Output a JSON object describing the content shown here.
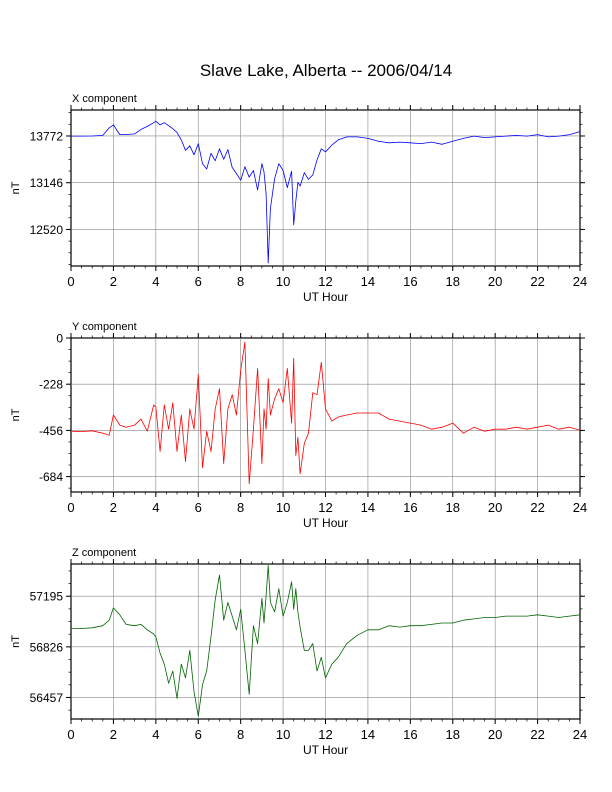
{
  "title": "Slave Lake, Alberta -- 2006/04/14",
  "chart_data": [
    {
      "type": "line",
      "panel_label": "X component",
      "xlabel": "UT Hour",
      "ylabel": "nT",
      "xlim": [
        0,
        24
      ],
      "ylim": [
        12030,
        14120
      ],
      "x_ticks": [
        0,
        2,
        4,
        6,
        8,
        10,
        12,
        14,
        16,
        18,
        20,
        22,
        24
      ],
      "y_ticks": [
        12520,
        13146,
        13772
      ],
      "grid": true,
      "series": [
        {
          "color": "#0000ff",
          "x": [
            0,
            0.5,
            1,
            1.5,
            1.8,
            2,
            2.3,
            2.6,
            3,
            3.3,
            3.6,
            3.9,
            4,
            4.2,
            4.4,
            4.6,
            4.8,
            5,
            5.2,
            5.4,
            5.6,
            5.8,
            6,
            6.2,
            6.4,
            6.6,
            6.8,
            7,
            7.2,
            7.4,
            7.6,
            7.8,
            8,
            8.2,
            8.4,
            8.6,
            8.8,
            9,
            9.1,
            9.2,
            9.3,
            9.4,
            9.6,
            9.8,
            10,
            10.2,
            10.4,
            10.5,
            10.6,
            10.7,
            10.8,
            11,
            11.2,
            11.4,
            11.6,
            11.8,
            12,
            12.3,
            12.6,
            13,
            13.5,
            14,
            14.5,
            15,
            15.5,
            16,
            16.5,
            17,
            17.5,
            18,
            18.5,
            19,
            19.5,
            20,
            20.5,
            21,
            21.5,
            22,
            22.5,
            23,
            23.5,
            24
          ],
          "values": [
            13770,
            13770,
            13772,
            13780,
            13880,
            13920,
            13790,
            13790,
            13800,
            13860,
            13900,
            13950,
            13970,
            13920,
            13950,
            13910,
            13870,
            13820,
            13720,
            13580,
            13640,
            13520,
            13670,
            13400,
            13330,
            13540,
            13440,
            13600,
            13460,
            13590,
            13350,
            13270,
            13180,
            13360,
            13220,
            13310,
            13050,
            13400,
            13290,
            13000,
            12070,
            12800,
            13200,
            13400,
            13310,
            13080,
            13300,
            12580,
            12900,
            13150,
            13100,
            13280,
            13190,
            13250,
            13450,
            13600,
            13560,
            13650,
            13720,
            13760,
            13760,
            13740,
            13700,
            13680,
            13690,
            13680,
            13670,
            13690,
            13660,
            13700,
            13740,
            13770,
            13750,
            13760,
            13770,
            13780,
            13770,
            13790,
            13760,
            13770,
            13790,
            13830
          ]
        }
      ]
    },
    {
      "type": "line",
      "panel_label": "Y component",
      "xlabel": "UT Hour",
      "ylabel": "nT",
      "xlim": [
        0,
        24
      ],
      "ylim": [
        -760,
        0
      ],
      "x_ticks": [
        0,
        2,
        4,
        6,
        8,
        10,
        12,
        14,
        16,
        18,
        20,
        22,
        24
      ],
      "y_ticks": [
        0,
        -228,
        -456,
        -684
      ],
      "grid": true,
      "series": [
        {
          "color": "#ff0000",
          "x": [
            0,
            0.5,
            1,
            1.5,
            1.8,
            2,
            2.3,
            2.6,
            3,
            3.3,
            3.6,
            3.9,
            4,
            4.2,
            4.4,
            4.6,
            4.8,
            5,
            5.2,
            5.4,
            5.6,
            5.8,
            6,
            6.2,
            6.4,
            6.6,
            6.8,
            7,
            7.2,
            7.4,
            7.6,
            7.8,
            8,
            8.2,
            8.4,
            8.6,
            8.8,
            9,
            9.1,
            9.2,
            9.3,
            9.4,
            9.6,
            9.8,
            10,
            10.2,
            10.4,
            10.5,
            10.6,
            10.7,
            10.8,
            11,
            11.2,
            11.4,
            11.6,
            11.8,
            12,
            12.3,
            12.6,
            13,
            13.5,
            14,
            14.5,
            15,
            15.5,
            16,
            16.5,
            17,
            17.5,
            18,
            18.5,
            19,
            19.5,
            20,
            20.5,
            21,
            21.5,
            22,
            22.5,
            23,
            23.5,
            24
          ],
          "values": [
            -460,
            -462,
            -458,
            -470,
            -480,
            -380,
            -430,
            -440,
            -430,
            -400,
            -460,
            -330,
            -340,
            -560,
            -330,
            -450,
            -320,
            -560,
            -380,
            -610,
            -350,
            -450,
            -180,
            -640,
            -460,
            -560,
            -350,
            -250,
            -620,
            -350,
            -280,
            -380,
            -160,
            -20,
            -720,
            -450,
            -150,
            -620,
            -350,
            -450,
            -200,
            -380,
            -300,
            -250,
            -320,
            -150,
            -420,
            -100,
            -580,
            -490,
            -670,
            -520,
            -470,
            -270,
            -280,
            -120,
            -350,
            -410,
            -390,
            -380,
            -370,
            -370,
            -370,
            -400,
            -410,
            -420,
            -430,
            -450,
            -440,
            -420,
            -470,
            -440,
            -460,
            -450,
            -450,
            -440,
            -450,
            -440,
            -430,
            -450,
            -440,
            -455
          ]
        }
      ]
    },
    {
      "type": "line",
      "panel_label": "Z component",
      "xlabel": "UT Hour",
      "ylabel": "nT",
      "xlim": [
        0,
        24
      ],
      "ylim": [
        56300,
        57430
      ],
      "x_ticks": [
        0,
        2,
        4,
        6,
        8,
        10,
        12,
        14,
        16,
        18,
        20,
        22,
        24
      ],
      "y_ticks": [
        56457,
        56826,
        57195
      ],
      "grid": true,
      "series": [
        {
          "color": "#006400",
          "x": [
            0,
            0.5,
            1,
            1.5,
            1.8,
            2,
            2.3,
            2.6,
            3,
            3.3,
            3.6,
            3.9,
            4,
            4.2,
            4.4,
            4.6,
            4.8,
            5,
            5.2,
            5.4,
            5.6,
            5.8,
            6,
            6.2,
            6.4,
            6.6,
            6.8,
            7,
            7.2,
            7.4,
            7.6,
            7.8,
            8,
            8.2,
            8.4,
            8.6,
            8.8,
            9,
            9.1,
            9.2,
            9.3,
            9.4,
            9.6,
            9.8,
            10,
            10.2,
            10.4,
            10.5,
            10.6,
            10.7,
            10.8,
            11,
            11.2,
            11.4,
            11.6,
            11.8,
            12,
            12.3,
            12.6,
            13,
            13.5,
            14,
            14.5,
            15,
            15.5,
            16,
            16.5,
            17,
            17.5,
            18,
            18.5,
            19,
            19.5,
            20,
            20.5,
            21,
            21.5,
            22,
            22.5,
            23,
            23.5,
            24
          ],
          "values": [
            56960,
            56960,
            56965,
            56980,
            57020,
            57110,
            57060,
            56990,
            56980,
            56990,
            56950,
            56920,
            56900,
            56780,
            56700,
            56560,
            56650,
            56450,
            56700,
            56600,
            56800,
            56500,
            56320,
            56550,
            56650,
            56900,
            57170,
            57350,
            57020,
            57150,
            57050,
            56950,
            57100,
            56800,
            56480,
            56980,
            56850,
            57180,
            57000,
            57200,
            57420,
            57150,
            57080,
            57250,
            57050,
            57150,
            57300,
            57100,
            57250,
            57080,
            56970,
            56800,
            56800,
            56850,
            56650,
            56750,
            56600,
            56700,
            56750,
            56850,
            56910,
            56950,
            56950,
            56980,
            56970,
            56980,
            56980,
            56990,
            57000,
            57000,
            57020,
            57030,
            57040,
            57040,
            57050,
            57050,
            57050,
            57060,
            57050,
            57040,
            57050,
            57060
          ]
        }
      ]
    }
  ]
}
